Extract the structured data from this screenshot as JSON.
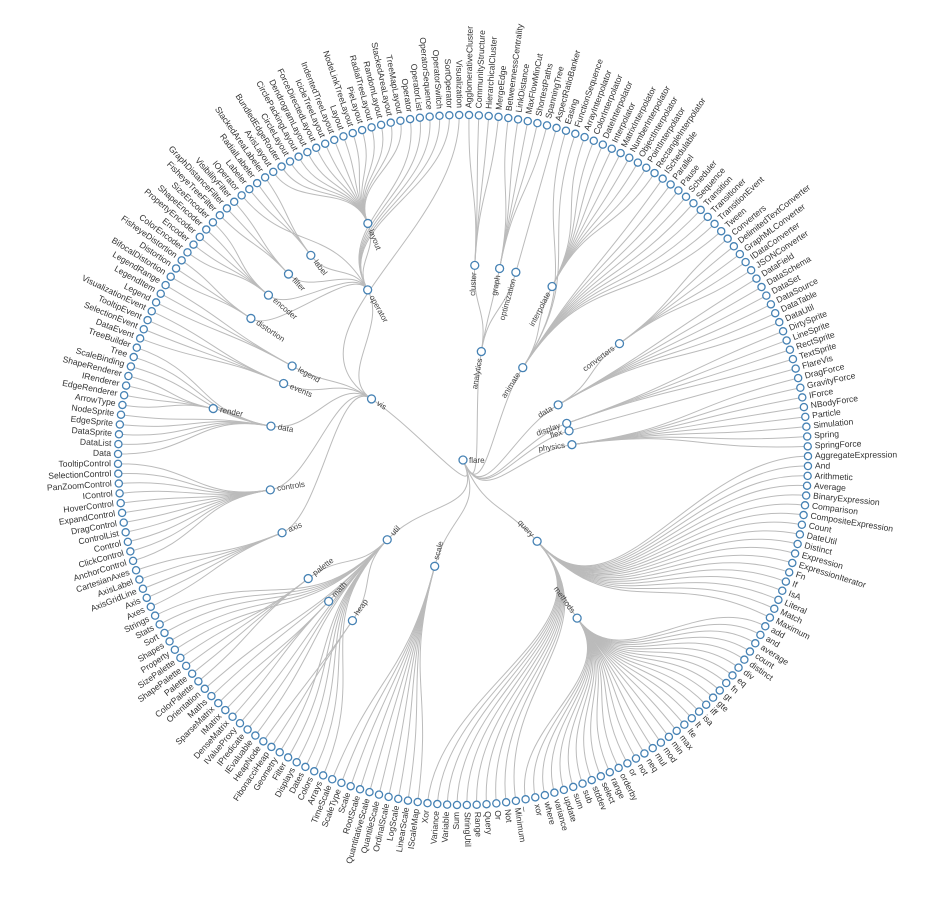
{
  "tree": {
    "name": "flare",
    "children": [
      {
        "name": "analytics",
        "children": [
          {
            "name": "cluster",
            "children": [
              {
                "name": "AgglomerativeCluster"
              },
              {
                "name": "CommunityStructure"
              },
              {
                "name": "HierarchicalCluster"
              },
              {
                "name": "MergeEdge"
              }
            ]
          },
          {
            "name": "graph",
            "children": [
              {
                "name": "BetweennessCentrality"
              },
              {
                "name": "LinkDistance"
              },
              {
                "name": "MaxFlowMinCut"
              },
              {
                "name": "ShortestPaths"
              },
              {
                "name": "SpanningTree"
              }
            ]
          },
          {
            "name": "optimization",
            "children": [
              {
                "name": "AspectRatioBanker"
              }
            ]
          }
        ]
      },
      {
        "name": "animate",
        "children": [
          {
            "name": "Easing"
          },
          {
            "name": "FunctionSequence"
          },
          {
            "name": "interpolate",
            "children": [
              {
                "name": "ArrayInterpolator"
              },
              {
                "name": "ColorInterpolator"
              },
              {
                "name": "DateInterpolator"
              },
              {
                "name": "Interpolator"
              },
              {
                "name": "MatrixInterpolator"
              },
              {
                "name": "NumberInterpolator"
              },
              {
                "name": "ObjectInterpolator"
              },
              {
                "name": "PointInterpolator"
              },
              {
                "name": "RectangleInterpolator"
              }
            ]
          },
          {
            "name": "ISchedulable"
          },
          {
            "name": "Parallel"
          },
          {
            "name": "Pause"
          },
          {
            "name": "Scheduler"
          },
          {
            "name": "Sequence"
          },
          {
            "name": "Transition"
          },
          {
            "name": "Transitioner"
          },
          {
            "name": "TransitionEvent"
          },
          {
            "name": "Tween"
          }
        ]
      },
      {
        "name": "data",
        "children": [
          {
            "name": "converters",
            "children": [
              {
                "name": "Converters"
              },
              {
                "name": "DelimitedTextConverter"
              },
              {
                "name": "GraphMLConverter"
              },
              {
                "name": "IDataConverter"
              },
              {
                "name": "JSONConverter"
              }
            ]
          },
          {
            "name": "DataField"
          },
          {
            "name": "DataSchema"
          },
          {
            "name": "DataSet"
          },
          {
            "name": "DataSource"
          },
          {
            "name": "DataTable"
          },
          {
            "name": "DataUtil"
          }
        ]
      },
      {
        "name": "display",
        "children": [
          {
            "name": "DirtySprite"
          },
          {
            "name": "LineSprite"
          },
          {
            "name": "RectSprite"
          },
          {
            "name": "TextSprite"
          }
        ]
      },
      {
        "name": "flex",
        "children": [
          {
            "name": "FlareVis"
          }
        ]
      },
      {
        "name": "physics",
        "children": [
          {
            "name": "DragForce"
          },
          {
            "name": "GravityForce"
          },
          {
            "name": "IForce"
          },
          {
            "name": "NBodyForce"
          },
          {
            "name": "Particle"
          },
          {
            "name": "Simulation"
          },
          {
            "name": "Spring"
          },
          {
            "name": "SpringForce"
          }
        ]
      },
      {
        "name": "query",
        "children": [
          {
            "name": "AggregateExpression"
          },
          {
            "name": "And"
          },
          {
            "name": "Arithmetic"
          },
          {
            "name": "Average"
          },
          {
            "name": "BinaryExpression"
          },
          {
            "name": "Comparison"
          },
          {
            "name": "CompositeExpression"
          },
          {
            "name": "Count"
          },
          {
            "name": "DateUtil"
          },
          {
            "name": "Distinct"
          },
          {
            "name": "Expression"
          },
          {
            "name": "ExpressionIterator"
          },
          {
            "name": "Fn"
          },
          {
            "name": "If"
          },
          {
            "name": "IsA"
          },
          {
            "name": "Literal"
          },
          {
            "name": "Match"
          },
          {
            "name": "Maximum"
          },
          {
            "name": "methods",
            "children": [
              {
                "name": "add"
              },
              {
                "name": "and"
              },
              {
                "name": "average"
              },
              {
                "name": "count"
              },
              {
                "name": "distinct"
              },
              {
                "name": "div"
              },
              {
                "name": "eq"
              },
              {
                "name": "fn"
              },
              {
                "name": "gt"
              },
              {
                "name": "gte"
              },
              {
                "name": "iff"
              },
              {
                "name": "isa"
              },
              {
                "name": "lt"
              },
              {
                "name": "lte"
              },
              {
                "name": "max"
              },
              {
                "name": "min"
              },
              {
                "name": "mod"
              },
              {
                "name": "mul"
              },
              {
                "name": "neq"
              },
              {
                "name": "not"
              },
              {
                "name": "or"
              },
              {
                "name": "orderby"
              },
              {
                "name": "range"
              },
              {
                "name": "select"
              },
              {
                "name": "stddev"
              },
              {
                "name": "sub"
              },
              {
                "name": "sum"
              },
              {
                "name": "update"
              },
              {
                "name": "variance"
              },
              {
                "name": "where"
              },
              {
                "name": "xor"
              },
              {
                "name": "_"
              }
            ]
          },
          {
            "name": "Minimum"
          },
          {
            "name": "Not"
          },
          {
            "name": "Or"
          },
          {
            "name": "Query"
          },
          {
            "name": "Range"
          },
          {
            "name": "StringUtil"
          },
          {
            "name": "Sum"
          },
          {
            "name": "Variable"
          },
          {
            "name": "Variance"
          },
          {
            "name": "Xor"
          }
        ]
      },
      {
        "name": "scale",
        "children": [
          {
            "name": "IScaleMap"
          },
          {
            "name": "LinearScale"
          },
          {
            "name": "LogScale"
          },
          {
            "name": "OrdinalScale"
          },
          {
            "name": "QuantileScale"
          },
          {
            "name": "QuantitativeScale"
          },
          {
            "name": "RootScale"
          },
          {
            "name": "Scale"
          },
          {
            "name": "ScaleType"
          },
          {
            "name": "TimeScale"
          }
        ]
      },
      {
        "name": "util",
        "children": [
          {
            "name": "Arrays"
          },
          {
            "name": "Colors"
          },
          {
            "name": "Dates"
          },
          {
            "name": "Displays"
          },
          {
            "name": "Filter"
          },
          {
            "name": "Geometry"
          },
          {
            "name": "heap",
            "children": [
              {
                "name": "FibonacciHeap"
              },
              {
                "name": "HeapNode"
              }
            ]
          },
          {
            "name": "IEvaluable"
          },
          {
            "name": "IPredicate"
          },
          {
            "name": "IValueProxy"
          },
          {
            "name": "math",
            "children": [
              {
                "name": "DenseMatrix"
              },
              {
                "name": "IMatrix"
              },
              {
                "name": "SparseMatrix"
              }
            ]
          },
          {
            "name": "Maths"
          },
          {
            "name": "Orientation"
          },
          {
            "name": "palette",
            "children": [
              {
                "name": "ColorPalette"
              },
              {
                "name": "Palette"
              },
              {
                "name": "ShapePalette"
              },
              {
                "name": "SizePalette"
              }
            ]
          },
          {
            "name": "Property"
          },
          {
            "name": "Shapes"
          },
          {
            "name": "Sort"
          },
          {
            "name": "Stats"
          },
          {
            "name": "Strings"
          }
        ]
      },
      {
        "name": "vis",
        "children": [
          {
            "name": "axis",
            "children": [
              {
                "name": "Axes"
              },
              {
                "name": "Axis"
              },
              {
                "name": "AxisGridLine"
              },
              {
                "name": "AxisLabel"
              },
              {
                "name": "CartesianAxes"
              }
            ]
          },
          {
            "name": "controls",
            "children": [
              {
                "name": "AnchorControl"
              },
              {
                "name": "ClickControl"
              },
              {
                "name": "Control"
              },
              {
                "name": "ControlList"
              },
              {
                "name": "DragControl"
              },
              {
                "name": "ExpandControl"
              },
              {
                "name": "HoverControl"
              },
              {
                "name": "IControl"
              },
              {
                "name": "PanZoomControl"
              },
              {
                "name": "SelectionControl"
              },
              {
                "name": "TooltipControl"
              }
            ]
          },
          {
            "name": "data",
            "children": [
              {
                "name": "Data"
              },
              {
                "name": "DataList"
              },
              {
                "name": "DataSprite"
              },
              {
                "name": "EdgeSprite"
              },
              {
                "name": "NodeSprite"
              },
              {
                "name": "render",
                "children": [
                  {
                    "name": "ArrowType"
                  },
                  {
                    "name": "EdgeRenderer"
                  },
                  {
                    "name": "IRenderer"
                  },
                  {
                    "name": "ShapeRenderer"
                  }
                ]
              },
              {
                "name": "ScaleBinding"
              },
              {
                "name": "Tree"
              },
              {
                "name": "TreeBuilder"
              }
            ]
          },
          {
            "name": "events",
            "children": [
              {
                "name": "DataEvent"
              },
              {
                "name": "SelectionEvent"
              },
              {
                "name": "TooltipEvent"
              },
              {
                "name": "VisualizationEvent"
              }
            ]
          },
          {
            "name": "legend",
            "children": [
              {
                "name": "Legend"
              },
              {
                "name": "LegendItem"
              },
              {
                "name": "LegendRange"
              }
            ]
          },
          {
            "name": "operator",
            "children": [
              {
                "name": "distortion",
                "children": [
                  {
                    "name": "BifocalDistortion"
                  },
                  {
                    "name": "Distortion"
                  },
                  {
                    "name": "FisheyeDistortion"
                  }
                ]
              },
              {
                "name": "encoder",
                "children": [
                  {
                    "name": "ColorEncoder"
                  },
                  {
                    "name": "Encoder"
                  },
                  {
                    "name": "PropertyEncoder"
                  },
                  {
                    "name": "ShapeEncoder"
                  },
                  {
                    "name": "SizeEncoder"
                  }
                ]
              },
              {
                "name": "filter",
                "children": [
                  {
                    "name": "FisheyeTreeFilter"
                  },
                  {
                    "name": "GraphDistanceFilter"
                  },
                  {
                    "name": "VisibilityFilter"
                  }
                ]
              },
              {
                "name": "IOperator"
              },
              {
                "name": "label",
                "children": [
                  {
                    "name": "Labeler"
                  },
                  {
                    "name": "RadialLabeler"
                  },
                  {
                    "name": "StackedAreaLabeler"
                  }
                ]
              },
              {
                "name": "layout",
                "children": [
                  {
                    "name": "AxisLayout"
                  },
                  {
                    "name": "BundledEdgeRouter"
                  },
                  {
                    "name": "CircleLayout"
                  },
                  {
                    "name": "CirclePackingLayout"
                  },
                  {
                    "name": "DendrogramLayout"
                  },
                  {
                    "name": "ForceDirectedLayout"
                  },
                  {
                    "name": "IcicleTreeLayout"
                  },
                  {
                    "name": "IndentedTreeLayout"
                  },
                  {
                    "name": "Layout"
                  },
                  {
                    "name": "NodeLinkTreeLayout"
                  },
                  {
                    "name": "PieLayout"
                  },
                  {
                    "name": "RadialTreeLayout"
                  },
                  {
                    "name": "RandomLayout"
                  },
                  {
                    "name": "StackedAreaLayout"
                  },
                  {
                    "name": "TreeMapLayout"
                  }
                ]
              },
              {
                "name": "Operator"
              },
              {
                "name": "OperatorList"
              },
              {
                "name": "OperatorSequence"
              },
              {
                "name": "OperatorSwitch"
              },
              {
                "name": "SortOperator"
              }
            ]
          },
          {
            "name": "Visualization"
          }
        ]
      }
    ]
  }
}
